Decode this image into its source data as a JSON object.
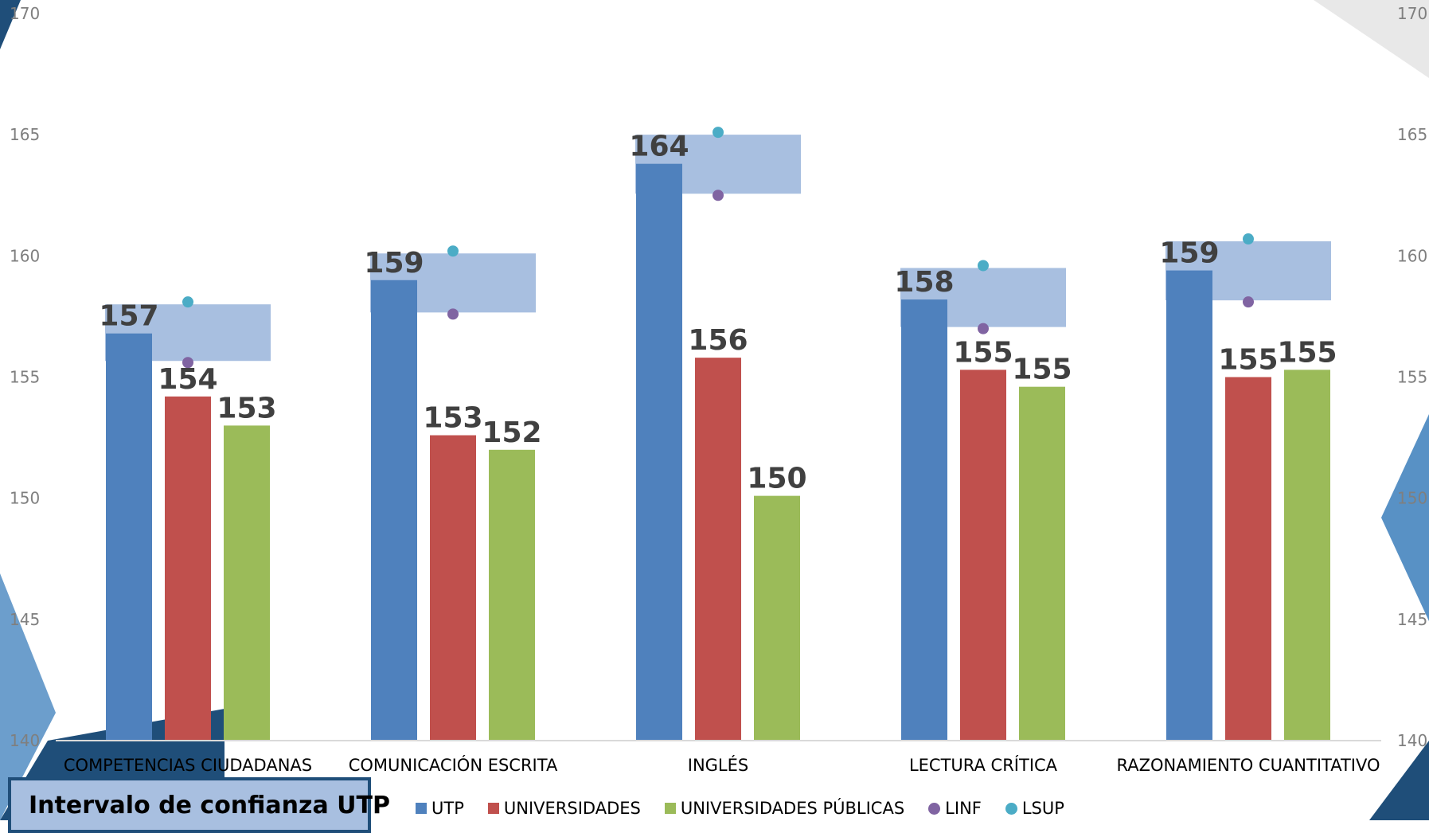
{
  "chart_data": {
    "type": "bar",
    "title": "",
    "xlabel": "",
    "ylabel": "",
    "ylim": [
      140,
      170
    ],
    "yticks": [
      140,
      145,
      150,
      155,
      160,
      165,
      170
    ],
    "secondary_axis_ticks": [
      140,
      145,
      150,
      155,
      160,
      165,
      170
    ],
    "grid": false,
    "legend_position": "bottom",
    "categories": [
      "COMPETENCIAS CIUDADANAS",
      "COMUNICACIÓN ESCRITA",
      "INGLÉS",
      "LECTURA CRÍTICA",
      "RAZONAMIENTO CUANTITATIVO"
    ],
    "series": [
      {
        "name": "UTP",
        "color": "#4f81bd",
        "values": [
          156.8,
          159.0,
          163.8,
          158.2,
          159.4
        ],
        "labels": [
          "157",
          "159",
          "164",
          "158",
          "159"
        ]
      },
      {
        "name": "UNIVERSIDADES",
        "color": "#c0504d",
        "values": [
          154.2,
          152.6,
          155.8,
          155.3,
          155.0
        ],
        "labels": [
          "154",
          "153",
          "156",
          "155",
          "155"
        ]
      },
      {
        "name": "UNIVERSIDADES PÚBLICAS",
        "color": "#9bbb59",
        "values": [
          153.0,
          152.0,
          150.1,
          154.6,
          155.3
        ],
        "labels": [
          "153",
          "152",
          "150",
          "155",
          "155"
        ]
      }
    ],
    "interval_series": [
      {
        "name": "LINF",
        "color": "#8064a2",
        "values": [
          155.6,
          157.6,
          162.5,
          157.0,
          158.1
        ]
      },
      {
        "name": "LSUP",
        "color": "#4bacc6",
        "values": [
          158.1,
          160.2,
          165.1,
          159.6,
          160.7
        ]
      }
    ],
    "interval_band_color": "#a8bfe0"
  },
  "ci_box": {
    "title": "Intervalo de confianza UTP"
  },
  "legend": [
    {
      "label": "UTP",
      "color": "#4f81bd",
      "marker": "square"
    },
    {
      "label": "UNIVERSIDADES",
      "color": "#c0504d",
      "marker": "square"
    },
    {
      "label": "UNIVERSIDADES PÚBLICAS",
      "color": "#9bbb59",
      "marker": "square"
    },
    {
      "label": "LINF",
      "color": "#8064a2",
      "marker": "circle"
    },
    {
      "label": "LSUP",
      "color": "#4bacc6",
      "marker": "circle"
    }
  ]
}
